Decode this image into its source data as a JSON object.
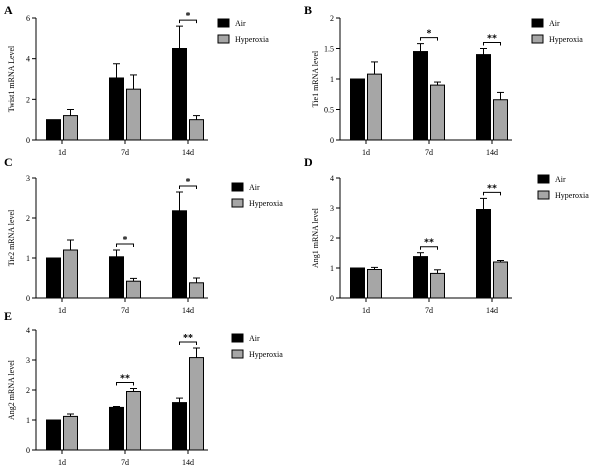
{
  "figure": {
    "legend": {
      "air": "Air",
      "hyperoxia": "Hyperoxia"
    },
    "colors": {
      "air": "#000000",
      "hyperoxia": "#a6a6a6",
      "axis": "#000000"
    }
  },
  "chart_data": [
    {
      "panel": "A",
      "type": "bar",
      "ylabel": "Twist1 mRNA Level",
      "categories": [
        "1d",
        "7d",
        "14d"
      ],
      "ylim": [
        0,
        6
      ],
      "yticks": [
        0,
        2,
        4,
        6
      ],
      "series": [
        {
          "name": "Air",
          "values": [
            1.0,
            3.05,
            4.5
          ],
          "errors": [
            0,
            0.7,
            1.1
          ]
        },
        {
          "name": "Hyperoxia",
          "values": [
            1.2,
            2.5,
            1.0
          ],
          "errors": [
            0.3,
            0.7,
            0.2
          ]
        }
      ],
      "significance": [
        {
          "category": "14d",
          "label": "*"
        }
      ]
    },
    {
      "panel": "B",
      "type": "bar",
      "ylabel": "Tie1 mRNA level",
      "categories": [
        "1d",
        "7d",
        "14d"
      ],
      "ylim": [
        0,
        2.0
      ],
      "yticks": [
        0.0,
        0.5,
        1.0,
        1.5,
        2.0
      ],
      "series": [
        {
          "name": "Air",
          "values": [
            1.0,
            1.45,
            1.4
          ],
          "errors": [
            0,
            0.13,
            0.1
          ]
        },
        {
          "name": "Hyperoxia",
          "values": [
            1.08,
            0.9,
            0.66
          ],
          "errors": [
            0.2,
            0.05,
            0.12
          ]
        }
      ],
      "significance": [
        {
          "category": "7d",
          "label": "*"
        },
        {
          "category": "14d",
          "label": "**"
        }
      ]
    },
    {
      "panel": "C",
      "type": "bar",
      "ylabel": "Tie2 mRNA level",
      "categories": [
        "1d",
        "7d",
        "14d"
      ],
      "ylim": [
        0,
        3
      ],
      "yticks": [
        0,
        1,
        2,
        3
      ],
      "series": [
        {
          "name": "Air",
          "values": [
            1.0,
            1.03,
            2.18
          ],
          "errors": [
            0,
            0.17,
            0.47
          ]
        },
        {
          "name": "Hyperoxia",
          "values": [
            1.2,
            0.42,
            0.38
          ],
          "errors": [
            0.25,
            0.07,
            0.12
          ]
        }
      ],
      "significance": [
        {
          "category": "7d",
          "label": "*"
        },
        {
          "category": "14d",
          "label": "*"
        }
      ]
    },
    {
      "panel": "D",
      "type": "bar",
      "ylabel": "Ang1 mRNA level",
      "categories": [
        "1d",
        "7d",
        "14d"
      ],
      "ylim": [
        0,
        4
      ],
      "yticks": [
        0,
        1,
        2,
        3,
        4
      ],
      "series": [
        {
          "name": "Air",
          "values": [
            1.0,
            1.38,
            2.95
          ],
          "errors": [
            0,
            0.13,
            0.37
          ]
        },
        {
          "name": "Hyperoxia",
          "values": [
            0.95,
            0.82,
            1.2
          ],
          "errors": [
            0.07,
            0.12,
            0.05
          ]
        }
      ],
      "significance": [
        {
          "category": "7d",
          "label": "**"
        },
        {
          "category": "14d",
          "label": "**"
        }
      ]
    },
    {
      "panel": "E",
      "type": "bar",
      "ylabel": "Ang2 mRNA level",
      "categories": [
        "1d",
        "7d",
        "14d"
      ],
      "ylim": [
        0,
        4
      ],
      "yticks": [
        0,
        1,
        2,
        3,
        4
      ],
      "series": [
        {
          "name": "Air",
          "values": [
            1.0,
            1.42,
            1.58
          ],
          "errors": [
            0,
            0.03,
            0.15
          ]
        },
        {
          "name": "Hyperoxia",
          "values": [
            1.12,
            1.95,
            3.08
          ],
          "errors": [
            0.08,
            0.1,
            0.32
          ]
        }
      ],
      "significance": [
        {
          "category": "7d",
          "label": "**"
        },
        {
          "category": "14d",
          "label": "**"
        }
      ]
    }
  ]
}
